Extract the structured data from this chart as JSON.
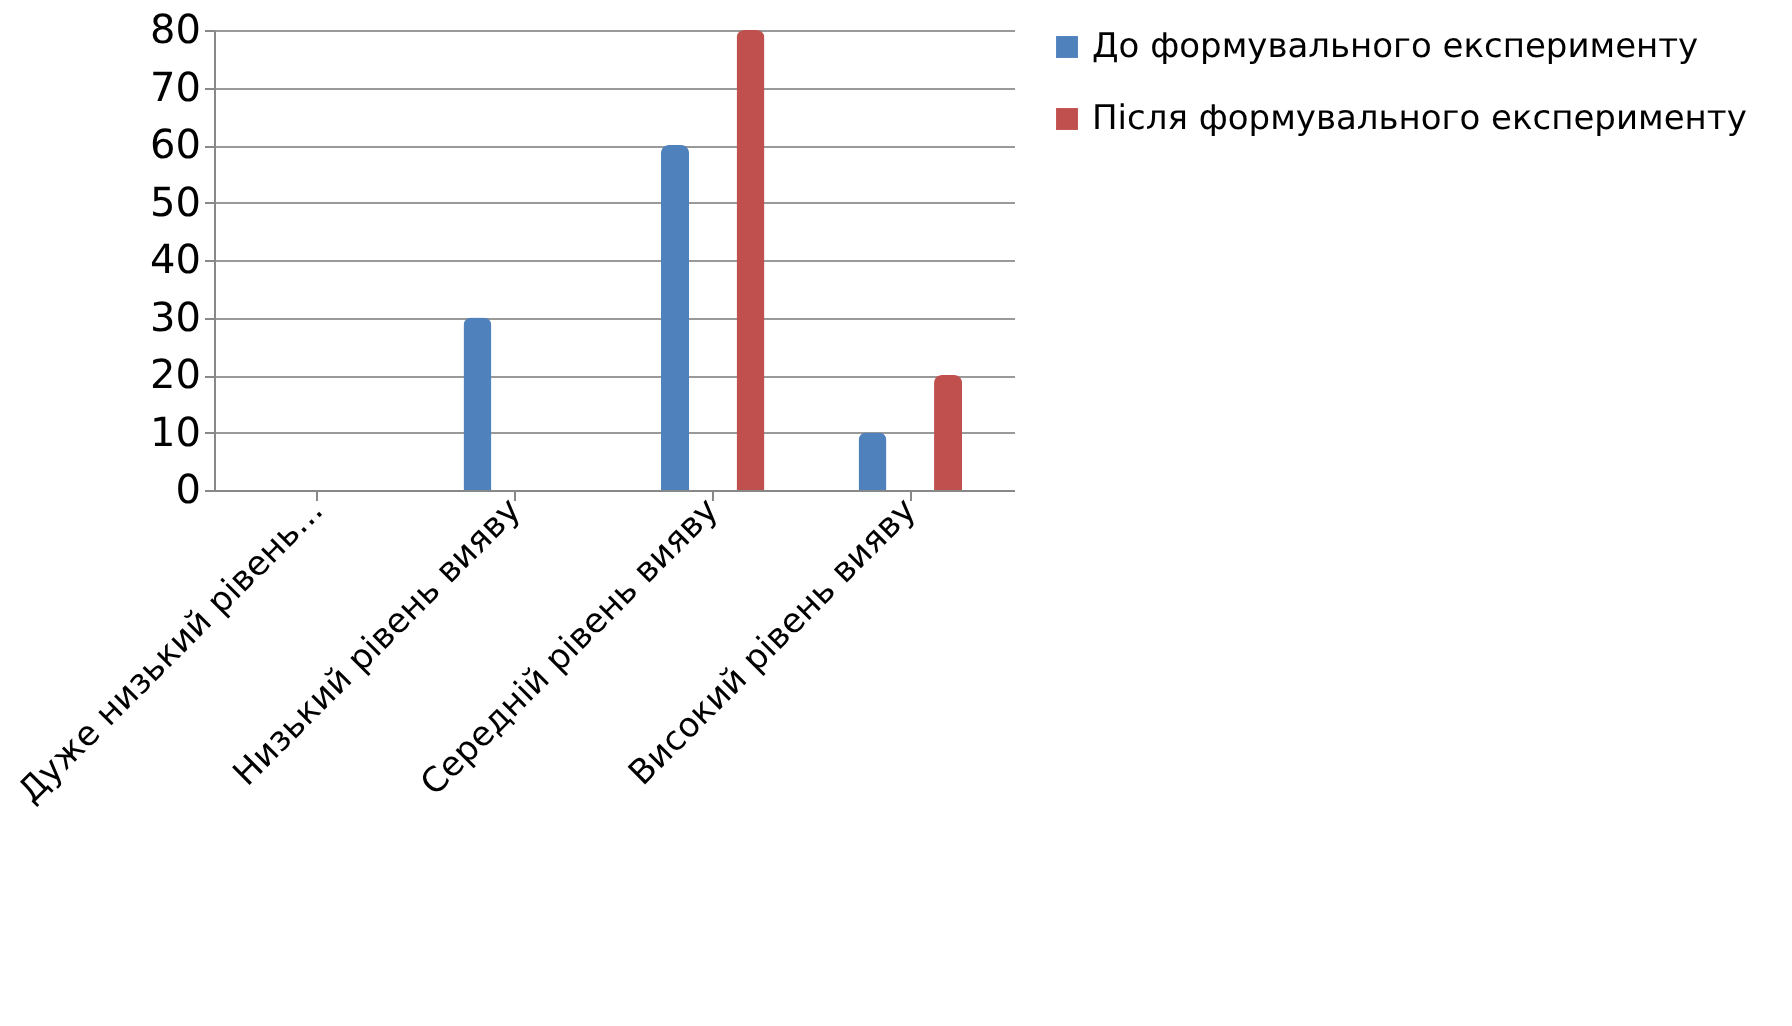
{
  "chart_data": {
    "type": "bar",
    "categories": [
      "Дуже низький рівень...",
      "Низький рівень вияву",
      "Середній рівень вияву",
      "Високий рівень вияву"
    ],
    "series": [
      {
        "name": "До формувального експерименту",
        "color": "#4f81bd",
        "values": [
          0,
          30,
          60,
          10
        ]
      },
      {
        "name": "Після формувального експерименту",
        "color": "#c0504d",
        "values": [
          0,
          0,
          80,
          20
        ]
      }
    ],
    "ylim": [
      0,
      80
    ],
    "yticks": [
      0,
      10,
      20,
      30,
      40,
      50,
      60,
      70,
      80
    ],
    "grid": "y",
    "legend": "right"
  }
}
